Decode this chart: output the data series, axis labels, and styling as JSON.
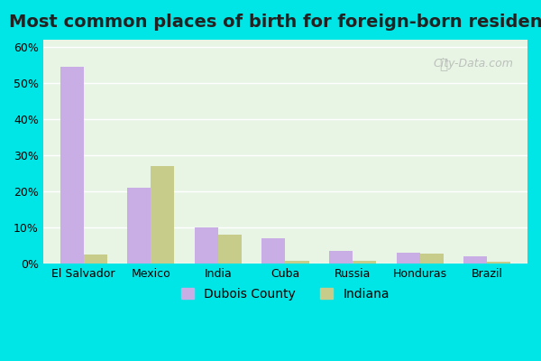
{
  "title": "Most common places of birth for foreign-born residents",
  "categories": [
    "El Salvador",
    "Mexico",
    "India",
    "Cuba",
    "Russia",
    "Honduras",
    "Brazil"
  ],
  "dubois_county": [
    54.5,
    21.0,
    10.0,
    7.0,
    3.5,
    3.0,
    2.0
  ],
  "indiana": [
    2.5,
    27.0,
    8.0,
    0.8,
    0.8,
    2.8,
    0.5
  ],
  "dubois_color": "#c9aee5",
  "indiana_color": "#c8cc8a",
  "background_top": "#e8f5e5",
  "background_bottom": "#d8f0ee",
  "outer_bg": "#00e5e5",
  "ylim": [
    0,
    62
  ],
  "yticks": [
    0,
    10,
    20,
    30,
    40,
    50,
    60
  ],
  "ytick_labels": [
    "0%",
    "10%",
    "20%",
    "30%",
    "40%",
    "50%",
    "60%"
  ],
  "legend_dubois": "Dubois County",
  "legend_indiana": "Indiana",
  "watermark": "City-Data.com",
  "bar_width": 0.35,
  "title_fontsize": 14
}
